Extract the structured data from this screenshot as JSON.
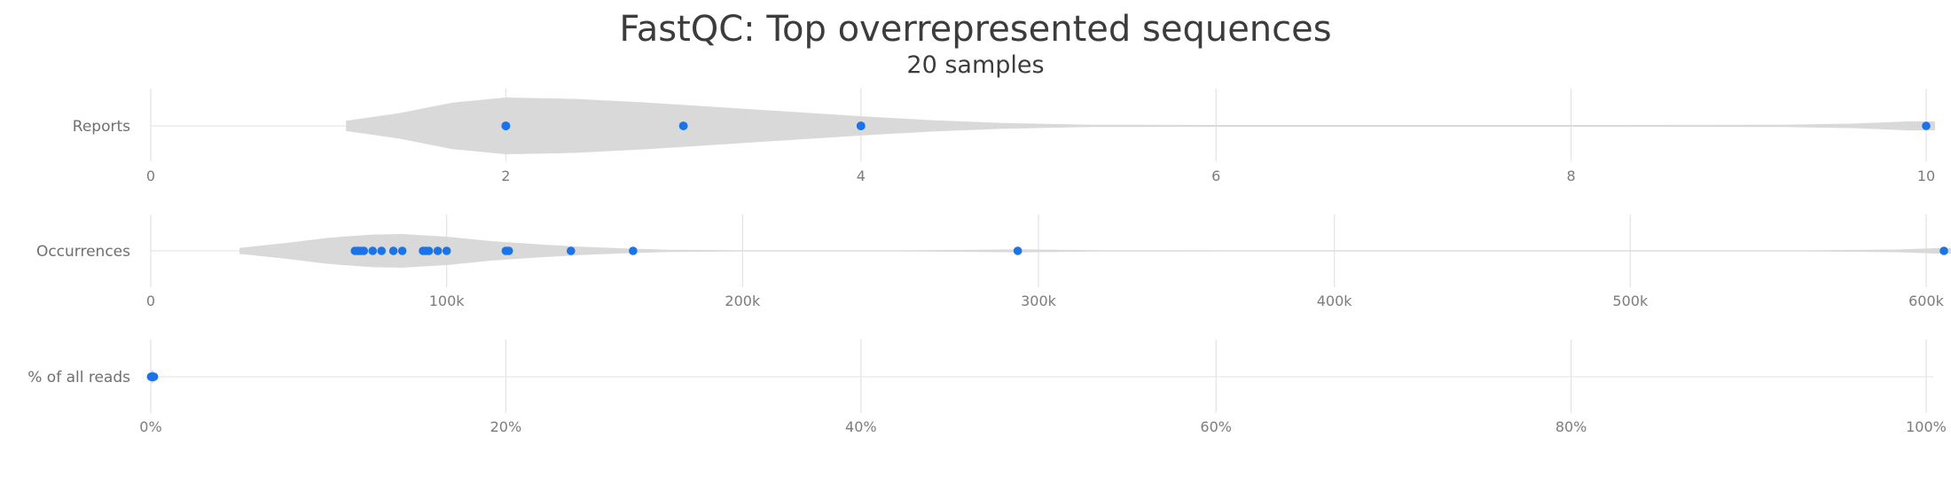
{
  "chart_data": {
    "type": "violin",
    "title": "FastQC: Top overrepresented sequences",
    "subtitle": "20 samples",
    "point_color": "#1a73e8",
    "violin_color": "#d9d9d9",
    "rows": [
      {
        "label": "Reports",
        "xlim": [
          0,
          10
        ],
        "ticks": [
          0,
          2,
          4,
          6,
          8,
          10
        ],
        "tick_labels": [
          "0",
          "2",
          "4",
          "6",
          "8",
          "10"
        ],
        "points": [
          2,
          2,
          2,
          2,
          2,
          2,
          2,
          3,
          3,
          3,
          4,
          4,
          4,
          4,
          4,
          10
        ],
        "violin": [
          [
            1.1,
            0.18
          ],
          [
            1.4,
            0.45
          ],
          [
            1.7,
            0.82
          ],
          [
            2.0,
            1.0
          ],
          [
            2.4,
            0.95
          ],
          [
            2.8,
            0.82
          ],
          [
            3.2,
            0.66
          ],
          [
            3.6,
            0.5
          ],
          [
            4.0,
            0.34
          ],
          [
            4.4,
            0.2
          ],
          [
            4.8,
            0.1
          ],
          [
            5.3,
            0.04
          ],
          [
            6.0,
            0.02
          ],
          [
            8.0,
            0.02
          ],
          [
            9.2,
            0.04
          ],
          [
            9.6,
            0.08
          ],
          [
            9.9,
            0.16
          ],
          [
            10.05,
            0.16
          ]
        ]
      },
      {
        "label": "Occurrences",
        "xlim": [
          0,
          610000
        ],
        "ticks": [
          0,
          100000,
          200000,
          300000,
          400000,
          500000,
          600000
        ],
        "tick_labels": [
          "0",
          "100k",
          "200k",
          "300k",
          "400k",
          "500k",
          "600k"
        ],
        "points": [
          69000,
          70000,
          71000,
          72000,
          75000,
          78000,
          82000,
          85000,
          92000,
          93000,
          94000,
          97000,
          100000,
          120000,
          121000,
          142000,
          163000,
          293000,
          606000
        ],
        "violin": [
          [
            30000,
            0.18
          ],
          [
            45000,
            0.45
          ],
          [
            60000,
            0.78
          ],
          [
            75000,
            0.97
          ],
          [
            85000,
            1.0
          ],
          [
            100000,
            0.84
          ],
          [
            115000,
            0.58
          ],
          [
            130000,
            0.4
          ],
          [
            145000,
            0.25
          ],
          [
            160000,
            0.14
          ],
          [
            175000,
            0.07
          ],
          [
            200000,
            0.03
          ],
          [
            250000,
            0.02
          ],
          [
            275000,
            0.06
          ],
          [
            293000,
            0.09
          ],
          [
            320000,
            0.04
          ],
          [
            360000,
            0.02
          ],
          [
            560000,
            0.02
          ],
          [
            590000,
            0.08
          ],
          [
            603000,
            0.16
          ],
          [
            609000,
            0.16
          ]
        ]
      },
      {
        "label": "% of all reads",
        "xlim": [
          0,
          100
        ],
        "ticks": [
          0,
          20,
          40,
          60,
          80,
          100
        ],
        "tick_labels": [
          "0%",
          "20%",
          "40%",
          "60%",
          "80%",
          "100%"
        ],
        "points": [
          0.02,
          0.03,
          0.04,
          0.05,
          0.06,
          0.08,
          0.1,
          0.12,
          0.15,
          0.18
        ],
        "violin": [
          [
            0.0,
            0.9
          ],
          [
            0.15,
            0.9
          ],
          [
            0.3,
            0.0
          ]
        ]
      }
    ]
  }
}
